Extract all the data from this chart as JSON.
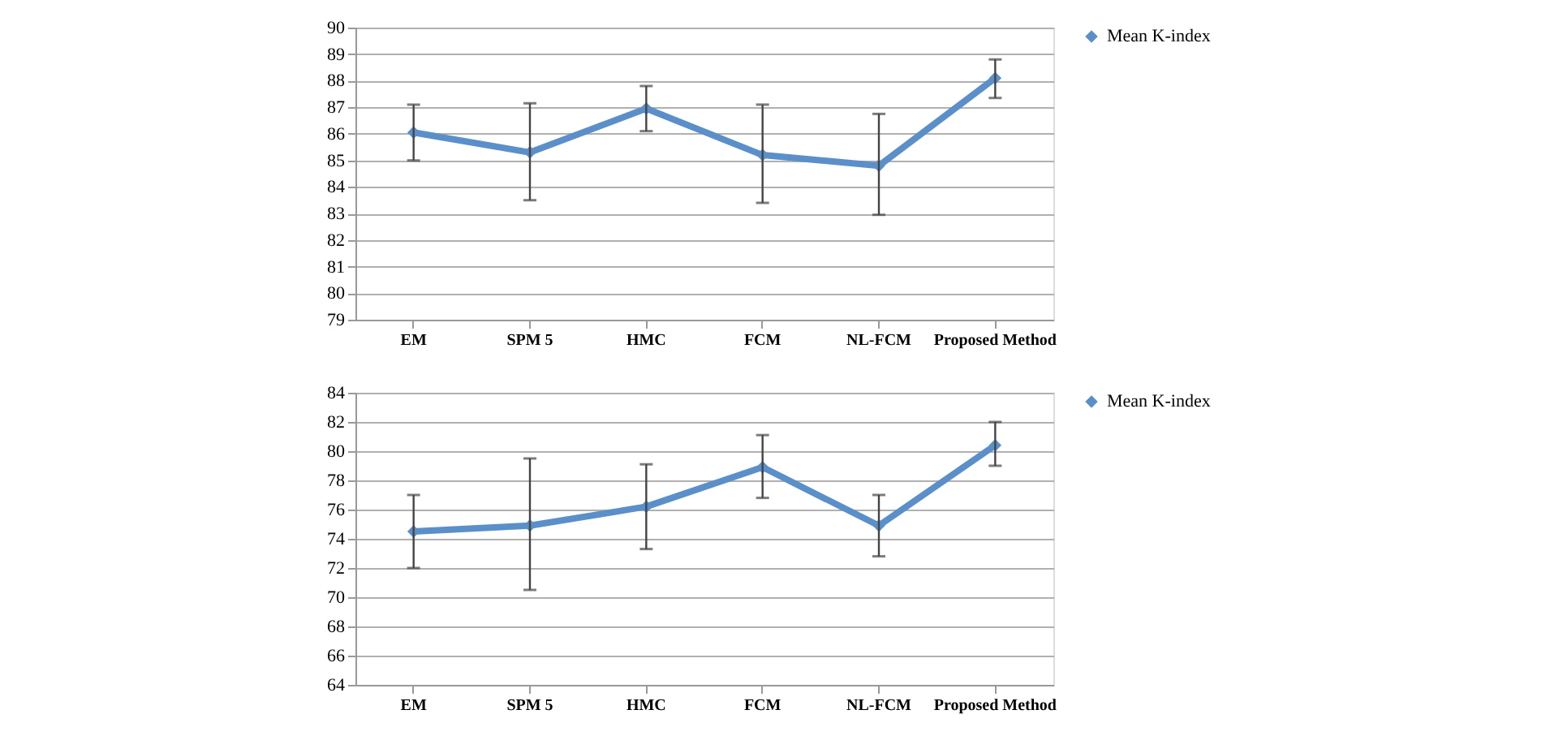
{
  "chart_data": [
    {
      "type": "line",
      "categories": [
        "EM",
        "SPM 5",
        "HMC",
        "FCM",
        "NL-FCM",
        "Proposed Method"
      ],
      "series": [
        {
          "name": "Mean K-index",
          "color": "#5b8fc9",
          "values": [
            86.05,
            85.3,
            86.95,
            85.2,
            84.8,
            88.1
          ],
          "errors": [
            [
              85.0,
              87.1
            ],
            [
              83.5,
              87.15
            ],
            [
              86.1,
              87.8
            ],
            [
              83.4,
              87.1
            ],
            [
              82.95,
              86.75
            ],
            [
              87.35,
              88.8
            ]
          ]
        }
      ],
      "ylim": [
        79,
        90
      ],
      "yticks": [
        79,
        80,
        81,
        82,
        83,
        84,
        85,
        86,
        87,
        88,
        89,
        90
      ],
      "grid": "y",
      "legend": "right",
      "marker": "diamond",
      "line_style": "solid"
    },
    {
      "type": "line",
      "categories": [
        "EM",
        "SPM 5",
        "HMC",
        "FCM",
        "NL-FCM",
        "Proposed Method"
      ],
      "series": [
        {
          "name": "Mean K-index",
          "color": "#5b8fc9",
          "values": [
            74.5,
            74.9,
            76.2,
            78.9,
            74.9,
            80.4
          ],
          "errors": [
            [
              72.0,
              77.0
            ],
            [
              70.5,
              79.5
            ],
            [
              73.3,
              79.1
            ],
            [
              76.8,
              81.1
            ],
            [
              72.8,
              77.0
            ],
            [
              79.0,
              82.0
            ]
          ]
        }
      ],
      "ylim": [
        64,
        84
      ],
      "yticks": [
        64,
        66,
        68,
        70,
        72,
        74,
        76,
        78,
        80,
        82,
        84
      ],
      "grid": "y",
      "legend": "right",
      "marker": "diamond",
      "line_style": "solid"
    }
  ]
}
